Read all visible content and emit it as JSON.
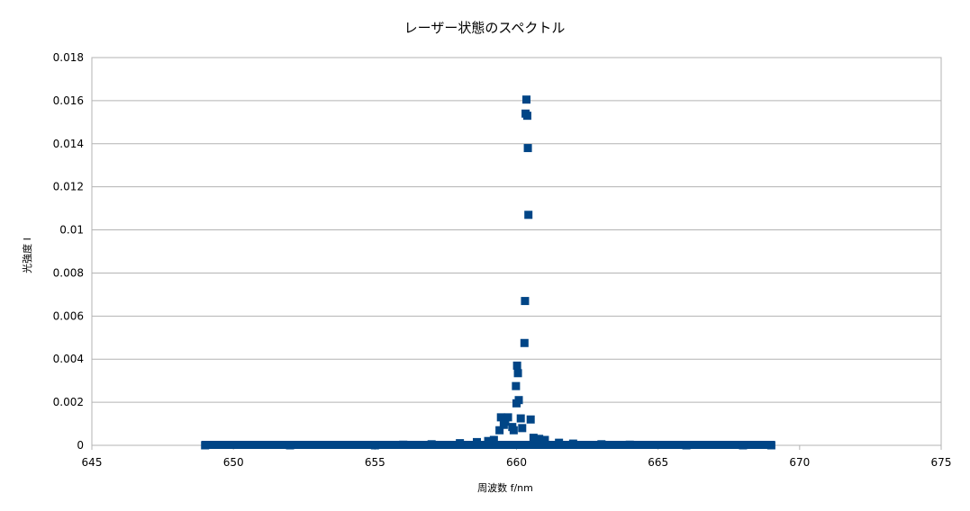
{
  "chart_data": {
    "type": "scatter",
    "title": "レーザー状態のスペクトル",
    "xlabel": "周波数 f/nm",
    "ylabel": "光強度 I",
    "xlim": [
      645,
      675
    ],
    "ylim": [
      0,
      0.018
    ],
    "x_ticks": [
      "645",
      "650",
      "655",
      "660",
      "665",
      "670",
      "675"
    ],
    "y_ticks": [
      "0",
      "0.002",
      "0.004",
      "0.006",
      "0.008",
      "0.01",
      "0.012",
      "0.014",
      "0.016",
      "0.018"
    ],
    "grid": true,
    "legend": "none",
    "marker": "square",
    "series": [
      {
        "color": "#004586",
        "points": [
          [
            660.35,
            0.01605
          ],
          [
            660.32,
            0.0154
          ],
          [
            660.38,
            0.0153
          ],
          [
            660.4,
            0.0138
          ],
          [
            660.42,
            0.0107
          ],
          [
            660.3,
            0.0067
          ],
          [
            660.28,
            0.00475
          ],
          [
            660.02,
            0.0037
          ],
          [
            660.05,
            0.00335
          ],
          [
            659.98,
            0.00275
          ],
          [
            660.08,
            0.0021
          ],
          [
            660.0,
            0.00195
          ],
          [
            660.5,
            0.0012
          ],
          [
            660.15,
            0.00125
          ],
          [
            659.45,
            0.0013
          ],
          [
            659.7,
            0.0013
          ],
          [
            659.6,
            0.0011
          ],
          [
            659.55,
            0.00095
          ],
          [
            659.85,
            0.00085
          ],
          [
            660.2,
            0.0008
          ],
          [
            659.9,
            0.0007
          ],
          [
            659.4,
            0.0007
          ],
          [
            660.6,
            0.00035
          ],
          [
            660.8,
            0.0003
          ],
          [
            661.0,
            0.00025
          ],
          [
            659.2,
            0.00025
          ],
          [
            659.0,
            0.0002
          ],
          [
            658.6,
            0.00015
          ],
          [
            658.0,
            0.0001
          ],
          [
            661.5,
            0.00012
          ],
          [
            662.0,
            8e-05
          ],
          [
            657.0,
            5e-05
          ],
          [
            656.0,
            3e-05
          ],
          [
            663.0,
            5e-05
          ],
          [
            664.0,
            3e-05
          ],
          [
            649.0,
            0.0
          ],
          [
            652.0,
            0.0
          ],
          [
            655.0,
            0.0
          ],
          [
            666.0,
            0.0
          ],
          [
            668.0,
            0.0
          ],
          [
            669.0,
            0.0
          ]
        ]
      }
    ]
  }
}
